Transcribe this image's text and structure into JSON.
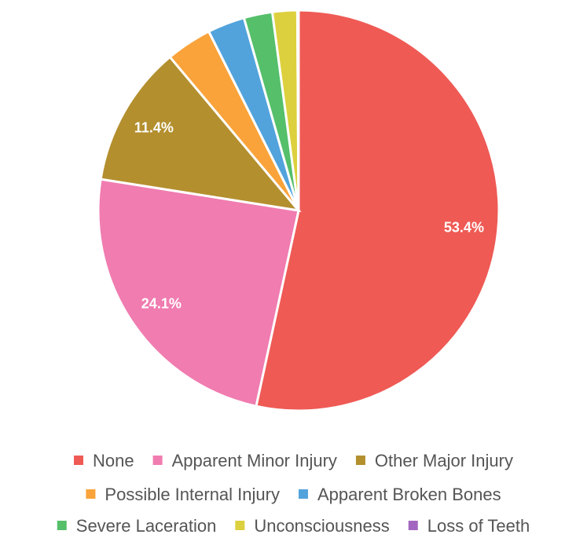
{
  "chart_data": {
    "type": "pie",
    "categories": [
      "None",
      "Apparent Minor Injury",
      "Other Major Injury",
      "Possible Internal Injury",
      "Apparent Broken Bones",
      "Severe Laceration",
      "Unconsciousness",
      "Loss of Teeth"
    ],
    "values": [
      53.4,
      24.1,
      11.4,
      3.7,
      3.0,
      2.3,
      2.0,
      0.1
    ],
    "value_labels": [
      "53.4%",
      "24.1%",
      "11.4%",
      null,
      null,
      null,
      null,
      null
    ],
    "colors": [
      "#ef5a55",
      "#f07cb0",
      "#b38f2e",
      "#f9a33a",
      "#52a3dc",
      "#55bf6a",
      "#ddd03e",
      "#a366c0"
    ],
    "legend": "bottom"
  }
}
